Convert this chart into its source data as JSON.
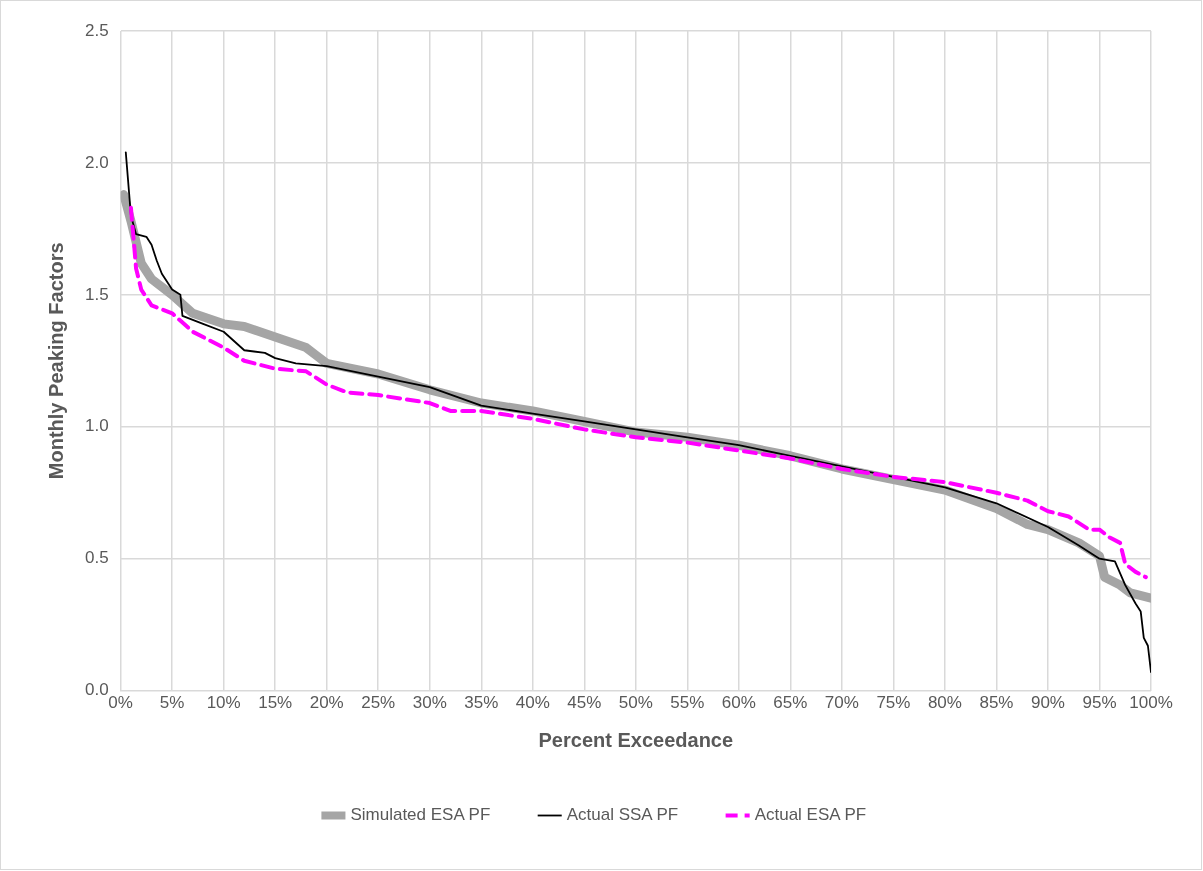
{
  "chart_data": {
    "type": "line",
    "xlabel": "Percent Exceedance",
    "ylabel": "Monthly Peaking Factors",
    "xlim": [
      0,
      100
    ],
    "ylim": [
      0,
      2.5
    ],
    "xticks": [
      {
        "value": 0,
        "label": "0%"
      },
      {
        "value": 5,
        "label": "5%"
      },
      {
        "value": 10,
        "label": "10%"
      },
      {
        "value": 15,
        "label": "15%"
      },
      {
        "value": 20,
        "label": "20%"
      },
      {
        "value": 25,
        "label": "25%"
      },
      {
        "value": 30,
        "label": "30%"
      },
      {
        "value": 35,
        "label": "35%"
      },
      {
        "value": 40,
        "label": "40%"
      },
      {
        "value": 45,
        "label": "45%"
      },
      {
        "value": 50,
        "label": "50%"
      },
      {
        "value": 55,
        "label": "55%"
      },
      {
        "value": 60,
        "label": "60%"
      },
      {
        "value": 65,
        "label": "65%"
      },
      {
        "value": 70,
        "label": "70%"
      },
      {
        "value": 75,
        "label": "75%"
      },
      {
        "value": 80,
        "label": "80%"
      },
      {
        "value": 85,
        "label": "85%"
      },
      {
        "value": 90,
        "label": "90%"
      },
      {
        "value": 95,
        "label": "95%"
      },
      {
        "value": 100,
        "label": "100%"
      }
    ],
    "yticks": [
      {
        "value": 0,
        "label": "0.0"
      },
      {
        "value": 0.5,
        "label": "0.5"
      },
      {
        "value": 1,
        "label": "1.0"
      },
      {
        "value": 1.5,
        "label": "1.5"
      },
      {
        "value": 2,
        "label": "2.0"
      },
      {
        "value": 2.5,
        "label": "2.5"
      }
    ],
    "grid": true,
    "legend": "bottom",
    "marker": "none",
    "series": [
      {
        "name": "Simulated ESA PF",
        "color": "#a5a5a5",
        "line_style": "solid",
        "x": [
          0.3,
          1,
          2,
          3,
          5,
          7,
          10,
          12,
          15,
          18,
          19,
          20,
          25,
          30,
          35,
          40,
          45,
          50,
          55,
          60,
          65,
          70,
          75,
          80,
          85,
          88,
          90,
          93,
          95,
          95.5,
          97,
          98,
          100
        ],
        "values": [
          1.88,
          1.78,
          1.62,
          1.56,
          1.5,
          1.43,
          1.39,
          1.38,
          1.34,
          1.3,
          1.27,
          1.24,
          1.2,
          1.14,
          1.09,
          1.06,
          1.02,
          0.98,
          0.96,
          0.93,
          0.89,
          0.84,
          0.8,
          0.76,
          0.69,
          0.63,
          0.61,
          0.56,
          0.51,
          0.43,
          0.4,
          0.37,
          0.35
        ]
      },
      {
        "name": "Actual SSA PF",
        "color": "#000000",
        "line_style": "solid",
        "x": [
          0.5,
          1,
          1.5,
          2.5,
          3,
          3.5,
          4,
          5,
          5.8,
          6,
          8,
          10,
          12,
          14,
          15,
          17,
          20,
          25,
          30,
          35,
          40,
          45,
          50,
          55,
          60,
          65,
          70,
          75,
          80,
          85,
          90,
          93,
          95,
          96.5,
          97.5,
          98.5,
          99,
          99.3,
          99.7,
          100
        ],
        "values": [
          2.04,
          1.8,
          1.73,
          1.72,
          1.69,
          1.63,
          1.58,
          1.52,
          1.5,
          1.42,
          1.39,
          1.36,
          1.29,
          1.28,
          1.26,
          1.24,
          1.23,
          1.19,
          1.15,
          1.08,
          1.05,
          1.02,
          0.99,
          0.96,
          0.93,
          0.89,
          0.85,
          0.81,
          0.77,
          0.71,
          0.62,
          0.55,
          0.5,
          0.49,
          0.4,
          0.33,
          0.3,
          0.2,
          0.17,
          0.07
        ]
      },
      {
        "name": "Actual ESA PF",
        "color": "#ff00ff",
        "line_style": "dashed",
        "x": [
          1,
          1.5,
          2,
          3,
          5,
          7,
          10,
          12,
          15,
          18,
          20,
          22,
          25,
          30,
          32,
          35,
          40,
          45,
          50,
          55,
          60,
          65,
          70,
          75,
          80,
          85,
          88,
          90,
          92,
          94,
          95,
          96,
          97,
          97.5,
          98.5,
          99.5
        ],
        "values": [
          1.83,
          1.6,
          1.52,
          1.46,
          1.43,
          1.36,
          1.3,
          1.25,
          1.22,
          1.21,
          1.16,
          1.13,
          1.12,
          1.09,
          1.06,
          1.06,
          1.03,
          0.99,
          0.96,
          0.94,
          0.91,
          0.88,
          0.84,
          0.81,
          0.79,
          0.75,
          0.72,
          0.68,
          0.66,
          0.61,
          0.61,
          0.58,
          0.56,
          0.48,
          0.45,
          0.43
        ]
      }
    ]
  }
}
